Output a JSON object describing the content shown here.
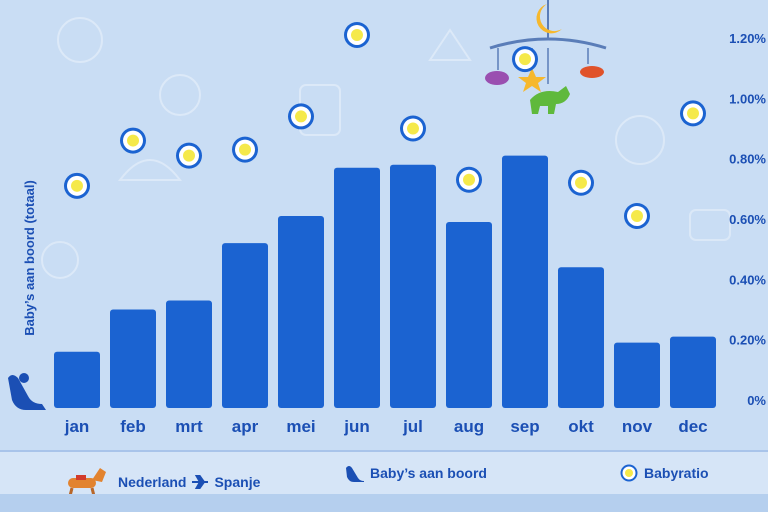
{
  "chart_data": {
    "type": "bar+scatter",
    "categories": [
      "jan",
      "feb",
      "mrt",
      "apr",
      "mei",
      "jun",
      "jul",
      "aug",
      "sep",
      "okt",
      "nov",
      "dec"
    ],
    "bars": {
      "name": "Baby’s aan boord",
      "values": [
        0.16,
        0.3,
        0.33,
        0.52,
        0.61,
        0.77,
        0.78,
        0.59,
        0.81,
        0.44,
        0.19,
        0.21
      ],
      "color": "#1b63d1"
    },
    "markers": {
      "name": "Babyratio",
      "values": [
        0.71,
        0.86,
        0.81,
        0.83,
        0.94,
        1.21,
        0.9,
        0.73,
        1.13,
        0.72,
        0.61,
        0.95
      ],
      "color": "#f5e94a"
    },
    "ylabel": "Baby’s aan boord (totaal)",
    "y_ticks": [
      "0%",
      "0.20%",
      "0.40%",
      "0.60%",
      "0.80%",
      "1.00%",
      "1.20%"
    ],
    "ylim": [
      0,
      1.2
    ]
  },
  "legend": {
    "route_from": "Nederland",
    "route_to": "Spanje",
    "series_bars": "Baby’s aan boord",
    "series_markers": "Babyratio"
  }
}
